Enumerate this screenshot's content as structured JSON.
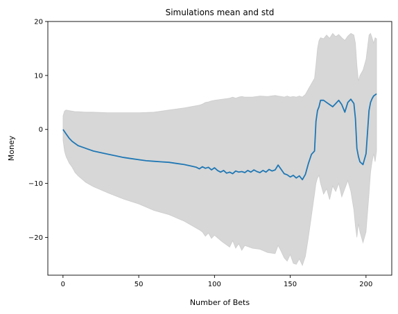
{
  "chart_data": {
    "type": "line",
    "title": "Simulations mean and std",
    "xlabel": "Number of Bets",
    "ylabel": "Money",
    "xlim": [
      -10,
      217
    ],
    "ylim": [
      -27,
      20
    ],
    "xticks": [
      0,
      50,
      100,
      150,
      200
    ],
    "yticks": [
      -20,
      -10,
      0,
      10,
      20
    ],
    "grid": false,
    "legend": "none",
    "colors": {
      "mean_line": "#1f77b4",
      "std_band": "#bdbdbd"
    },
    "series": [
      {
        "style": "line",
        "x": [
          0,
          2,
          4,
          6,
          8,
          10,
          12,
          14,
          16,
          18,
          20,
          25,
          30,
          35,
          40,
          45,
          50,
          55,
          60,
          65,
          70,
          75,
          80,
          85,
          88,
          90,
          92,
          94,
          96,
          98,
          100,
          102,
          104,
          106,
          108,
          110,
          112,
          114,
          116,
          118,
          120,
          122,
          124,
          126,
          128,
          130,
          132,
          134,
          136,
          138,
          140,
          142,
          144,
          146,
          148,
          150,
          152,
          154,
          156,
          158,
          160,
          162,
          164,
          166,
          167,
          168,
          169,
          170,
          172,
          174,
          176,
          178,
          180,
          182,
          184,
          186,
          188,
          190,
          192,
          193,
          194,
          195,
          196,
          198,
          200,
          202,
          203,
          204,
          205,
          206,
          207
        ],
        "y": [
          0,
          -0.8,
          -1.6,
          -2.2,
          -2.6,
          -3.0,
          -3.2,
          -3.4,
          -3.6,
          -3.8,
          -4.0,
          -4.3,
          -4.6,
          -4.9,
          -5.2,
          -5.4,
          -5.6,
          -5.8,
          -5.9,
          -6.0,
          -6.1,
          -6.3,
          -6.5,
          -6.8,
          -7.0,
          -7.3,
          -6.9,
          -7.2,
          -7.0,
          -7.5,
          -7.1,
          -7.6,
          -7.9,
          -7.6,
          -8.1,
          -7.9,
          -8.2,
          -7.7,
          -7.9,
          -7.8,
          -8.0,
          -7.6,
          -7.9,
          -7.5,
          -7.8,
          -8.0,
          -7.6,
          -7.9,
          -7.4,
          -7.7,
          -7.5,
          -6.6,
          -7.4,
          -8.2,
          -8.4,
          -8.8,
          -8.5,
          -9.0,
          -8.6,
          -9.3,
          -8.3,
          -6.3,
          -4.6,
          -4.0,
          1.5,
          3.5,
          4.2,
          5.4,
          5.4,
          5.0,
          4.6,
          4.2,
          4.8,
          5.4,
          4.6,
          3.2,
          5.0,
          5.6,
          4.8,
          2.0,
          -3.5,
          -5.0,
          -6.0,
          -6.5,
          -4.5,
          3.5,
          5.0,
          5.7,
          6.2,
          6.4,
          6.6
        ]
      },
      {
        "style": "band",
        "x": [
          0,
          1,
          2,
          4,
          6,
          8,
          10,
          15,
          20,
          30,
          40,
          50,
          60,
          70,
          80,
          90,
          92,
          94,
          96,
          98,
          100,
          105,
          110,
          112,
          114,
          116,
          118,
          120,
          125,
          130,
          135,
          140,
          142,
          144,
          146,
          148,
          150,
          152,
          154,
          156,
          158,
          160,
          162,
          164,
          166,
          167,
          168,
          169,
          170,
          172,
          174,
          176,
          178,
          180,
          182,
          184,
          186,
          188,
          190,
          192,
          193,
          194,
          195,
          196,
          198,
          200,
          202,
          203,
          204,
          205,
          206,
          207
        ],
        "upper": [
          2.5,
          3.4,
          3.6,
          3.5,
          3.4,
          3.3,
          3.3,
          3.2,
          3.2,
          3.1,
          3.1,
          3.1,
          3.2,
          3.6,
          4.0,
          4.5,
          4.7,
          5.0,
          5.1,
          5.3,
          5.4,
          5.6,
          5.8,
          6.0,
          5.8,
          6.0,
          6.1,
          6.0,
          6.0,
          6.2,
          6.1,
          6.3,
          6.2,
          6.1,
          6.0,
          6.2,
          6.0,
          6.1,
          6.0,
          6.2,
          6.0,
          6.5,
          7.5,
          8.5,
          9.5,
          12.0,
          15.0,
          16.5,
          17.0,
          16.8,
          17.5,
          16.9,
          17.8,
          17.2,
          17.6,
          17.0,
          16.5,
          17.3,
          17.8,
          17.5,
          16.0,
          12.0,
          9.0,
          10.0,
          11.0,
          13.0,
          17.5,
          17.8,
          17.0,
          16.0,
          17.0,
          16.8
        ],
        "lower": [
          -2.0,
          -4.0,
          -5.0,
          -6.2,
          -7.0,
          -8.0,
          -8.6,
          -9.8,
          -10.6,
          -11.8,
          -12.9,
          -13.8,
          -15.0,
          -15.8,
          -17.0,
          -18.6,
          -19.0,
          -19.8,
          -19.2,
          -20.2,
          -19.6,
          -20.8,
          -21.8,
          -20.6,
          -22.0,
          -21.2,
          -22.4,
          -21.5,
          -22.0,
          -22.2,
          -22.8,
          -23.0,
          -21.5,
          -22.6,
          -23.8,
          -24.4,
          -23.2,
          -24.8,
          -25.0,
          -24.0,
          -25.2,
          -23.5,
          -20.0,
          -16.0,
          -12.0,
          -10.0,
          -9.0,
          -8.5,
          -10.0,
          -12.0,
          -11.0,
          -13.0,
          -10.5,
          -11.5,
          -10.0,
          -12.5,
          -11.0,
          -9.5,
          -11.5,
          -15.0,
          -18.0,
          -20.0,
          -17.5,
          -19.0,
          -21.0,
          -19.0,
          -12.0,
          -8.0,
          -6.0,
          -4.5,
          -6.0,
          -4.0
        ]
      }
    ]
  }
}
